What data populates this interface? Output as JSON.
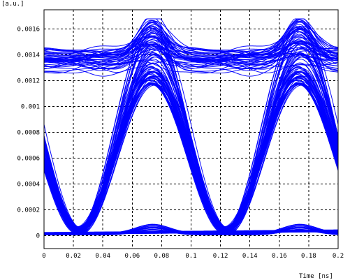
{
  "chart_data": {
    "type": "line",
    "title": "",
    "xlabel": "Time [ns]",
    "ylabel": "[a.u.]",
    "xlim": [
      0,
      0.2
    ],
    "ylim": [
      -0.0001,
      0.00175
    ],
    "x_ticks": [
      "0",
      "0.02",
      "0.04",
      "0.06",
      "0.08",
      "0.1",
      "0.12",
      "0.14",
      "0.16",
      "0.18",
      "0.2"
    ],
    "y_ticks": [
      "0",
      "0.0002",
      "0.0004",
      "0.0006",
      "0.0008",
      "0.001",
      "0.0012",
      "0.0014",
      "0.0016"
    ],
    "grid": true,
    "series_color": "#0000ff",
    "eye_diagram": {
      "bit_period_ns": 0.1,
      "first_peak_center_ns": 0.074,
      "second_peak_center_ns": 0.174,
      "crossing_points_ns": [
        0.025,
        0.124
      ],
      "crossing_level": 0.0005,
      "one_level_min": 0.00128,
      "one_level_max": 0.00145,
      "peak_max": 0.00168,
      "zero_level": 1e-05,
      "zero_level_peak": 5e-05
    },
    "series": [
      {
        "x": [
          0,
          0.01,
          0.02,
          0.03,
          0.04,
          0.05,
          0.06,
          0.07,
          0.08,
          0.09,
          0.1,
          0.11,
          0.12,
          0.13,
          0.14,
          0.15,
          0.16,
          0.17,
          0.18,
          0.19,
          0.2
        ],
        "y": [
          0.00132,
          0.00134,
          0.00131,
          0.00136,
          0.00138,
          0.0014,
          0.00142,
          0.0015,
          0.00145,
          0.00138,
          0.00134,
          0.00133,
          0.00135,
          0.00138,
          0.00139,
          0.0014,
          0.00142,
          0.0015,
          0.00145,
          0.00138,
          0.00135
        ]
      },
      {
        "x": [
          0,
          0.01,
          0.02,
          0.03,
          0.04,
          0.05,
          0.06,
          0.07,
          0.08,
          0.09,
          0.1,
          0.11,
          0.12,
          0.13,
          0.14,
          0.15,
          0.16,
          0.17,
          0.18,
          0.19,
          0.2
        ],
        "y": [
          0.0012,
          0.00095,
          0.00062,
          0.00035,
          0.00016,
          7e-05,
          4e-05,
          4e-05,
          5e-05,
          4e-05,
          3e-05,
          3e-05,
          4e-05,
          4e-05,
          5e-05,
          4e-05,
          4e-05,
          4e-05,
          5e-05,
          4e-05,
          3e-05
        ]
      },
      {
        "x": [
          0,
          0.01,
          0.02,
          0.03,
          0.04,
          0.05,
          0.06,
          0.07,
          0.08,
          0.09,
          0.1,
          0.11,
          0.12,
          0.13,
          0.14,
          0.15,
          0.16,
          0.17,
          0.18,
          0.19,
          0.2
        ],
        "y": [
          0.0001,
          0.0002,
          0.0004,
          0.00067,
          0.00096,
          0.00123,
          0.00145,
          0.00158,
          0.0015,
          0.00126,
          0.00096,
          0.00066,
          0.00041,
          0.0002,
          8e-05,
          4e-05,
          3e-05,
          3e-05,
          4e-05,
          4e-05,
          6e-05
        ]
      },
      {
        "x": [
          0,
          0.01,
          0.02,
          0.03,
          0.04,
          0.05,
          0.06,
          0.07,
          0.08,
          0.09,
          0.1,
          0.11,
          0.12,
          0.13,
          0.14,
          0.15,
          0.16,
          0.17,
          0.18,
          0.19,
          0.2
        ],
        "y": [
          3e-05,
          4e-05,
          4e-05,
          3e-05,
          4e-05,
          6e-05,
          0.0001,
          0.00012,
          0.00011,
          9e-05,
          0.00012,
          0.00022,
          0.00042,
          0.00068,
          0.00097,
          0.00124,
          0.00146,
          0.0016,
          0.00151,
          0.00127,
          0.00097
        ]
      },
      {
        "x": [
          0,
          0.01,
          0.02,
          0.03,
          0.04,
          0.05,
          0.06,
          0.07,
          0.08,
          0.09,
          0.1,
          0.11,
          0.12,
          0.13,
          0.14,
          0.15,
          0.16,
          0.17,
          0.18,
          0.19,
          0.2
        ],
        "y": [
          1e-05,
          1e-05,
          1e-05,
          1e-05,
          2e-05,
          2e-05,
          2e-05,
          3e-05,
          3e-05,
          3e-05,
          2e-05,
          2e-05,
          2e-05,
          2e-05,
          3e-05,
          3e-05,
          2e-05,
          2e-05,
          2e-05,
          2e-05,
          2e-05
        ]
      }
    ]
  }
}
